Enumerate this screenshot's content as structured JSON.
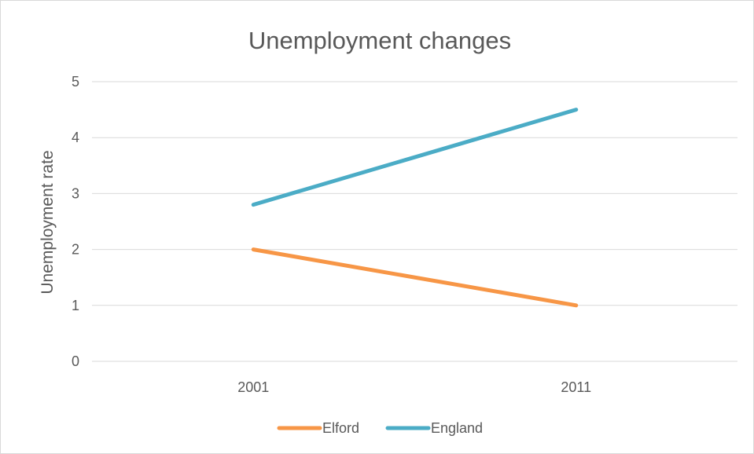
{
  "chart_data": {
    "type": "line",
    "title": "Unemployment changes",
    "xlabel": "",
    "ylabel": "Unemployment rate",
    "categories": [
      "2001",
      "2011"
    ],
    "ylim": [
      0,
      5
    ],
    "yticks": [
      "0",
      "1",
      "2",
      "3",
      "4",
      "5"
    ],
    "grid": true,
    "legend_position": "bottom",
    "series": [
      {
        "name": "Elford",
        "values": [
          2.0,
          1.0
        ],
        "color": "#f79646"
      },
      {
        "name": "England",
        "values": [
          2.8,
          4.5
        ],
        "color": "#4bacc6"
      }
    ]
  },
  "colors": {
    "gridline": "#d9d9d9",
    "text": "#595959",
    "border": "#d9d9d9"
  }
}
